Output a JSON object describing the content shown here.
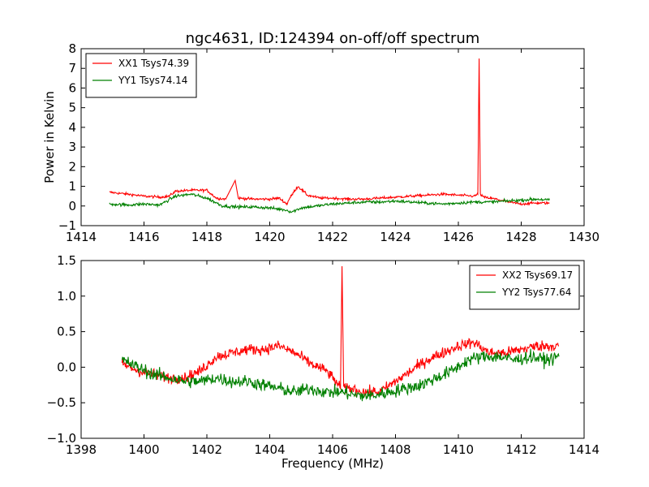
{
  "title": "ngc4631, ID:124394 on-off/off spectrum",
  "colors": {
    "xx": "#ff0000",
    "yy": "#008000"
  },
  "chart_data": [
    {
      "type": "line",
      "title": "ngc4631, ID:124394 on-off/off spectrum",
      "xlabel": "",
      "ylabel": "Power in Kelvin",
      "xlim": [
        1414,
        1430
      ],
      "ylim": [
        -1,
        8
      ],
      "xticks": [
        "1414",
        "1416",
        "1418",
        "1420",
        "1422",
        "1424",
        "1426",
        "1428",
        "1430"
      ],
      "yticks": [
        "-1",
        "0",
        "1",
        "2",
        "3",
        "4",
        "5",
        "6",
        "7",
        "8"
      ],
      "grid": false,
      "legend": "top-left",
      "series": [
        {
          "name": "XX1 Tsys74.39",
          "color": "#ff0000",
          "x": [
            1414.9,
            1415.5,
            1416.0,
            1416.5,
            1416.8,
            1417.0,
            1417.5,
            1418.0,
            1418.3,
            1418.6,
            1418.9,
            1419.0,
            1419.5,
            1420.0,
            1420.3,
            1420.55,
            1420.6,
            1420.8,
            1420.9,
            1421.2,
            1421.6,
            1422.0,
            1422.5,
            1423.0,
            1423.5,
            1424.0,
            1424.5,
            1425.0,
            1425.5,
            1426.0,
            1426.5,
            1426.62,
            1426.66,
            1426.7,
            1426.8,
            1427.2,
            1427.6,
            1428.0,
            1428.4,
            1428.9
          ],
          "y": [
            0.7,
            0.6,
            0.5,
            0.45,
            0.5,
            0.75,
            0.8,
            0.8,
            0.4,
            0.35,
            1.3,
            0.4,
            0.35,
            0.35,
            0.4,
            0.1,
            0.3,
            0.8,
            1.0,
            0.55,
            0.4,
            0.4,
            0.35,
            0.35,
            0.4,
            0.45,
            0.5,
            0.55,
            0.6,
            0.55,
            0.5,
            0.6,
            7.5,
            0.6,
            0.45,
            0.35,
            0.2,
            0.1,
            0.15,
            0.15
          ]
        },
        {
          "name": "YY1 Tsys74.14",
          "color": "#008000",
          "x": [
            1414.9,
            1415.5,
            1416.0,
            1416.5,
            1417.0,
            1417.5,
            1418.0,
            1418.5,
            1419.0,
            1419.5,
            1420.0,
            1420.5,
            1420.7,
            1421.0,
            1421.5,
            1422.0,
            1422.5,
            1423.0,
            1423.5,
            1424.0,
            1424.5,
            1425.0,
            1425.5,
            1426.0,
            1426.5,
            1427.0,
            1427.5,
            1428.0,
            1428.5,
            1428.9
          ],
          "y": [
            0.1,
            0.05,
            0.1,
            0.05,
            0.5,
            0.6,
            0.4,
            0.0,
            -0.05,
            -0.05,
            -0.1,
            -0.2,
            -0.3,
            -0.1,
            0.0,
            0.1,
            0.15,
            0.2,
            0.2,
            0.25,
            0.2,
            0.15,
            0.1,
            0.15,
            0.2,
            0.2,
            0.25,
            0.3,
            0.35,
            0.3
          ]
        }
      ]
    },
    {
      "type": "line",
      "title": "",
      "xlabel": "Frequency (MHz)",
      "ylabel": "",
      "xlim": [
        1398,
        1414
      ],
      "ylim": [
        -1,
        1.5
      ],
      "xticks": [
        "1398",
        "1400",
        "1402",
        "1404",
        "1406",
        "1408",
        "1410",
        "1412",
        "1414"
      ],
      "yticks": [
        "-1.0",
        "-0.5",
        "0.0",
        "0.5",
        "1.0",
        "1.5"
      ],
      "grid": false,
      "legend": "top-right",
      "series": [
        {
          "name": "XX2 Tsys69.17",
          "color": "#ff0000",
          "x": [
            1399.3,
            1399.8,
            1400.3,
            1400.8,
            1401.3,
            1401.8,
            1402.3,
            1402.8,
            1403.3,
            1403.8,
            1404.3,
            1404.8,
            1405.3,
            1405.8,
            1406.1,
            1406.25,
            1406.3,
            1406.35,
            1406.6,
            1407.0,
            1407.5,
            1408.0,
            1408.5,
            1409.0,
            1409.5,
            1410.0,
            1410.5,
            1411.0,
            1411.5,
            1412.0,
            1412.5,
            1413.2
          ],
          "y": [
            0.05,
            -0.05,
            -0.1,
            -0.15,
            -0.15,
            -0.05,
            0.15,
            0.2,
            0.25,
            0.25,
            0.3,
            0.2,
            0.05,
            -0.05,
            -0.2,
            -0.3,
            1.42,
            -0.3,
            -0.3,
            -0.35,
            -0.35,
            -0.2,
            -0.05,
            0.1,
            0.2,
            0.3,
            0.35,
            0.2,
            0.2,
            0.25,
            0.3,
            0.3
          ]
        },
        {
          "name": "YY2 Tsys77.64",
          "color": "#008000",
          "x": [
            1399.3,
            1399.8,
            1400.3,
            1400.8,
            1401.3,
            1401.8,
            1402.3,
            1402.8,
            1403.3,
            1403.8,
            1404.3,
            1404.8,
            1405.3,
            1405.8,
            1406.3,
            1406.8,
            1407.3,
            1407.8,
            1408.3,
            1408.8,
            1409.3,
            1409.8,
            1410.3,
            1410.8,
            1411.3,
            1411.8,
            1412.3,
            1412.8,
            1413.2
          ],
          "y": [
            0.1,
            0.0,
            -0.1,
            -0.15,
            -0.2,
            -0.2,
            -0.15,
            -0.2,
            -0.2,
            -0.25,
            -0.3,
            -0.35,
            -0.3,
            -0.35,
            -0.35,
            -0.4,
            -0.4,
            -0.35,
            -0.3,
            -0.25,
            -0.15,
            -0.05,
            0.1,
            0.15,
            0.15,
            0.1,
            0.15,
            0.1,
            0.15
          ]
        }
      ]
    }
  ]
}
